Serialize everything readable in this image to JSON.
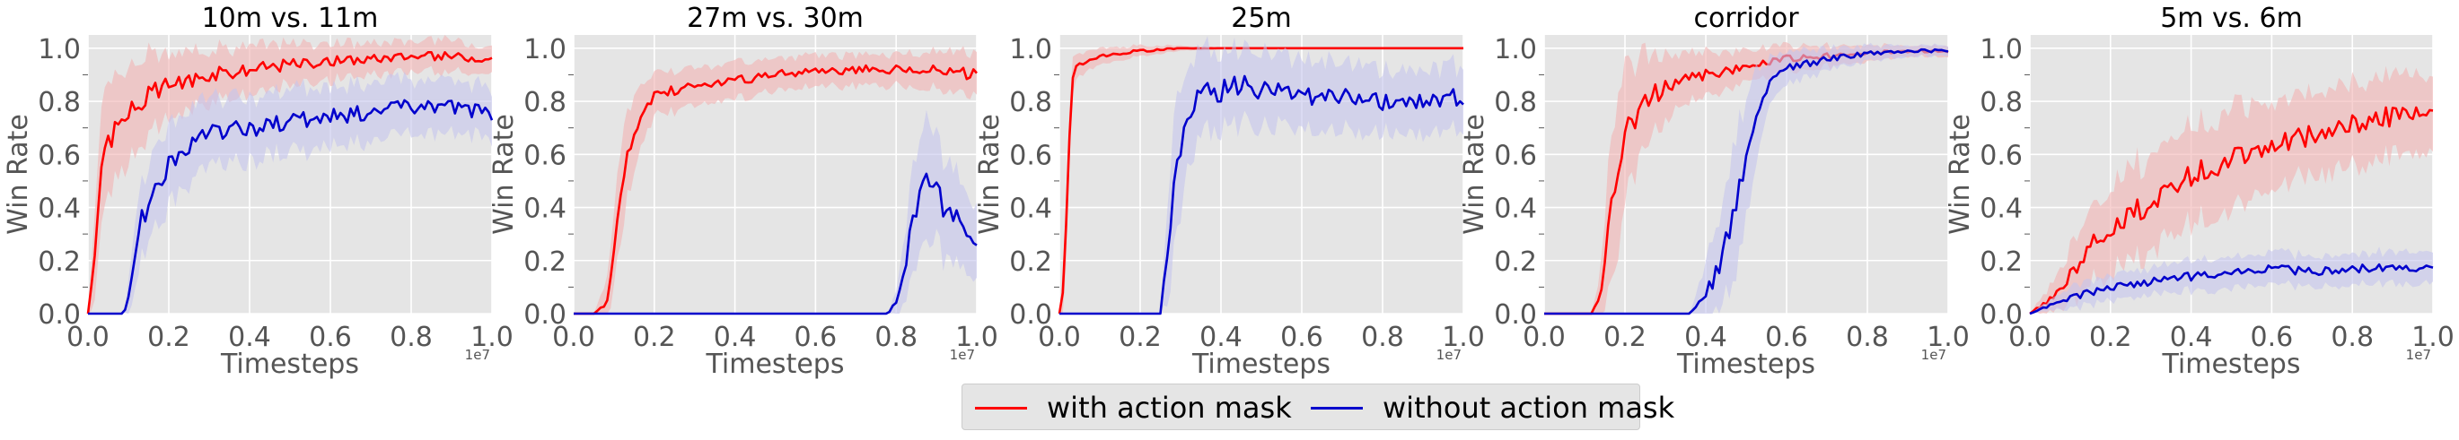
{
  "figure": {
    "legend": {
      "entries": [
        {
          "label": "with action mask",
          "color": "#ff0000"
        },
        {
          "label": "without action mask",
          "color": "#0000cc"
        }
      ]
    }
  },
  "chart_data": [
    {
      "type": "line",
      "title": "10m vs. 11m",
      "xlabel": "Timesteps",
      "ylabel": "Win Rate",
      "x_multiplier": "1e7",
      "xlim": [
        0,
        1.0
      ],
      "ylim": [
        0,
        1.05
      ],
      "xticks": [
        "0.0",
        "0.2",
        "0.4",
        "0.6",
        "0.8",
        "1.0"
      ],
      "yticks": [
        "0.0",
        "0.2",
        "0.4",
        "0.6",
        "0.8",
        "1.0"
      ],
      "grid": true,
      "series": [
        {
          "name": "with action mask",
          "color": "#ff0000",
          "band_color": "#f2b3b3",
          "x": [
            0,
            0.02,
            0.04,
            0.05,
            0.07,
            0.1,
            0.15,
            0.2,
            0.3,
            0.4,
            0.5,
            0.6,
            0.7,
            0.8,
            0.9,
            1.0
          ],
          "y": [
            0.0,
            0.3,
            0.62,
            0.65,
            0.7,
            0.75,
            0.82,
            0.86,
            0.9,
            0.92,
            0.94,
            0.95,
            0.96,
            0.97,
            0.97,
            0.96
          ],
          "spread": [
            0.0,
            0.2,
            0.25,
            0.22,
            0.2,
            0.18,
            0.15,
            0.12,
            0.1,
            0.09,
            0.08,
            0.07,
            0.06,
            0.06,
            0.06,
            0.05
          ]
        },
        {
          "name": "without action mask",
          "color": "#0000cc",
          "band_color": "#c4c4ec",
          "x": [
            0,
            0.09,
            0.11,
            0.13,
            0.15,
            0.2,
            0.25,
            0.3,
            0.4,
            0.5,
            0.6,
            0.7,
            0.8,
            0.9,
            1.0
          ],
          "y": [
            0.0,
            0.0,
            0.15,
            0.35,
            0.4,
            0.55,
            0.62,
            0.68,
            0.7,
            0.72,
            0.74,
            0.76,
            0.78,
            0.78,
            0.75
          ],
          "spread": [
            0.0,
            0.0,
            0.12,
            0.15,
            0.15,
            0.15,
            0.14,
            0.13,
            0.12,
            0.12,
            0.11,
            0.11,
            0.1,
            0.1,
            0.1
          ]
        }
      ]
    },
    {
      "type": "line",
      "title": "27m vs. 30m",
      "xlabel": "Timesteps",
      "ylabel": "Win Rate",
      "x_multiplier": "1e7",
      "xlim": [
        0,
        1.0
      ],
      "ylim": [
        0,
        1.05
      ],
      "xticks": [
        "0.0",
        "0.2",
        "0.4",
        "0.6",
        "0.8",
        "1.0"
      ],
      "yticks": [
        "0.0",
        "0.2",
        "0.4",
        "0.6",
        "0.8",
        "1.0"
      ],
      "grid": true,
      "series": [
        {
          "name": "with action mask",
          "color": "#ff0000",
          "band_color": "#f2b3b3",
          "x": [
            0,
            0.05,
            0.08,
            0.1,
            0.12,
            0.15,
            0.18,
            0.2,
            0.3,
            0.4,
            0.5,
            0.6,
            0.7,
            0.8,
            0.9,
            1.0
          ],
          "y": [
            0.0,
            0.0,
            0.05,
            0.2,
            0.5,
            0.68,
            0.78,
            0.82,
            0.86,
            0.88,
            0.9,
            0.91,
            0.92,
            0.92,
            0.92,
            0.9
          ],
          "spread": [
            0.0,
            0.0,
            0.08,
            0.15,
            0.18,
            0.15,
            0.1,
            0.08,
            0.07,
            0.07,
            0.06,
            0.06,
            0.06,
            0.06,
            0.07,
            0.08
          ]
        },
        {
          "name": "without action mask",
          "color": "#0000cc",
          "band_color": "#c4c4ec",
          "x": [
            0,
            0.78,
            0.8,
            0.82,
            0.84,
            0.86,
            0.88,
            0.9,
            0.92,
            0.94,
            0.96,
            0.98,
            1.0
          ],
          "y": [
            0.0,
            0.0,
            0.05,
            0.15,
            0.35,
            0.45,
            0.5,
            0.45,
            0.4,
            0.35,
            0.38,
            0.32,
            0.26
          ],
          "spread": [
            0.0,
            0.0,
            0.05,
            0.12,
            0.2,
            0.22,
            0.22,
            0.2,
            0.18,
            0.17,
            0.16,
            0.15,
            0.14
          ]
        }
      ]
    },
    {
      "type": "line",
      "title": "25m",
      "xlabel": "Timesteps",
      "ylabel": "Win Rate",
      "x_multiplier": "1e7",
      "xlim": [
        0,
        1.0
      ],
      "ylim": [
        0,
        1.05
      ],
      "xticks": [
        "0.0",
        "0.2",
        "0.4",
        "0.6",
        "0.8",
        "1.0"
      ],
      "yticks": [
        "0.0",
        "0.2",
        "0.4",
        "0.6",
        "0.8",
        "1.0"
      ],
      "grid": true,
      "series": [
        {
          "name": "with action mask",
          "color": "#ff0000",
          "band_color": "#f2b3b3",
          "x": [
            0,
            0.01,
            0.02,
            0.03,
            0.04,
            0.06,
            0.1,
            0.2,
            0.3,
            0.4,
            0.5,
            0.6,
            0.7,
            0.8,
            0.9,
            1.0
          ],
          "y": [
            0.0,
            0.1,
            0.5,
            0.85,
            0.92,
            0.95,
            0.97,
            0.99,
            1.0,
            1.0,
            1.0,
            1.0,
            1.0,
            1.0,
            1.0,
            1.0
          ],
          "spread": [
            0.0,
            0.1,
            0.15,
            0.08,
            0.05,
            0.04,
            0.03,
            0.02,
            0.01,
            0.0,
            0.0,
            0.0,
            0.0,
            0.0,
            0.0,
            0.0
          ]
        },
        {
          "name": "without action mask",
          "color": "#0000cc",
          "band_color": "#c4c4ec",
          "x": [
            0,
            0.25,
            0.27,
            0.29,
            0.31,
            0.33,
            0.35,
            0.4,
            0.45,
            0.5,
            0.6,
            0.7,
            0.8,
            0.9,
            1.0
          ],
          "y": [
            0.0,
            0.0,
            0.3,
            0.55,
            0.7,
            0.78,
            0.82,
            0.84,
            0.86,
            0.84,
            0.82,
            0.82,
            0.8,
            0.8,
            0.82
          ],
          "spread": [
            0.0,
            0.0,
            0.2,
            0.25,
            0.2,
            0.18,
            0.16,
            0.15,
            0.14,
            0.14,
            0.13,
            0.13,
            0.12,
            0.12,
            0.12
          ]
        }
      ]
    },
    {
      "type": "line",
      "title": "corridor",
      "xlabel": "Timesteps",
      "ylabel": "Win Rate",
      "x_multiplier": "1e7",
      "xlim": [
        0,
        1.0
      ],
      "ylim": [
        0,
        1.05
      ],
      "xticks": [
        "0.0",
        "0.2",
        "0.4",
        "0.6",
        "0.8",
        "1.0"
      ],
      "yticks": [
        "0.0",
        "0.2",
        "0.4",
        "0.6",
        "0.8",
        "1.0"
      ],
      "grid": true,
      "series": [
        {
          "name": "with action mask",
          "color": "#ff0000",
          "band_color": "#f2b3b3",
          "x": [
            0,
            0.12,
            0.14,
            0.16,
            0.18,
            0.2,
            0.25,
            0.3,
            0.4,
            0.5,
            0.6,
            0.7,
            0.8,
            0.9,
            1.0
          ],
          "y": [
            0.0,
            0.0,
            0.08,
            0.35,
            0.55,
            0.68,
            0.8,
            0.85,
            0.9,
            0.93,
            0.96,
            0.97,
            0.98,
            0.99,
            0.99
          ],
          "spread": [
            0.0,
            0.0,
            0.1,
            0.25,
            0.3,
            0.25,
            0.18,
            0.12,
            0.08,
            0.06,
            0.05,
            0.04,
            0.03,
            0.02,
            0.02
          ]
        },
        {
          "name": "without action mask",
          "color": "#0000cc",
          "band_color": "#c4c4ec",
          "x": [
            0,
            0.36,
            0.4,
            0.44,
            0.48,
            0.52,
            0.55,
            0.6,
            0.7,
            0.8,
            0.9,
            1.0
          ],
          "y": [
            0.0,
            0.0,
            0.08,
            0.2,
            0.45,
            0.72,
            0.85,
            0.92,
            0.96,
            0.98,
            0.99,
            0.99
          ],
          "spread": [
            0.0,
            0.0,
            0.12,
            0.2,
            0.25,
            0.2,
            0.1,
            0.06,
            0.04,
            0.03,
            0.02,
            0.02
          ]
        }
      ]
    },
    {
      "type": "line",
      "title": "5m vs. 6m",
      "xlabel": "Timesteps",
      "ylabel": "Win Rate",
      "x_multiplier": "1e7",
      "xlim": [
        0,
        1.0
      ],
      "ylim": [
        0,
        1.05
      ],
      "xticks": [
        "0.0",
        "0.2",
        "0.4",
        "0.6",
        "0.8",
        "1.0"
      ],
      "yticks": [
        "0.0",
        "0.2",
        "0.4",
        "0.6",
        "0.8",
        "1.0"
      ],
      "grid": true,
      "series": [
        {
          "name": "with action mask",
          "color": "#ff0000",
          "band_color": "#f2b3b3",
          "x": [
            0,
            0.05,
            0.1,
            0.15,
            0.2,
            0.3,
            0.4,
            0.5,
            0.6,
            0.7,
            0.8,
            0.9,
            1.0
          ],
          "y": [
            0.0,
            0.05,
            0.15,
            0.25,
            0.32,
            0.42,
            0.52,
            0.58,
            0.64,
            0.68,
            0.72,
            0.74,
            0.75
          ],
          "spread": [
            0.0,
            0.05,
            0.1,
            0.14,
            0.16,
            0.18,
            0.18,
            0.18,
            0.17,
            0.16,
            0.15,
            0.15,
            0.14
          ]
        },
        {
          "name": "without action mask",
          "color": "#0000cc",
          "band_color": "#c4c4ec",
          "x": [
            0,
            0.05,
            0.1,
            0.2,
            0.3,
            0.4,
            0.5,
            0.6,
            0.7,
            0.8,
            0.9,
            1.0
          ],
          "y": [
            0.0,
            0.03,
            0.06,
            0.1,
            0.12,
            0.14,
            0.15,
            0.17,
            0.16,
            0.17,
            0.17,
            0.17
          ],
          "spread": [
            0.0,
            0.02,
            0.04,
            0.05,
            0.05,
            0.06,
            0.06,
            0.06,
            0.06,
            0.06,
            0.06,
            0.06
          ]
        }
      ]
    }
  ]
}
